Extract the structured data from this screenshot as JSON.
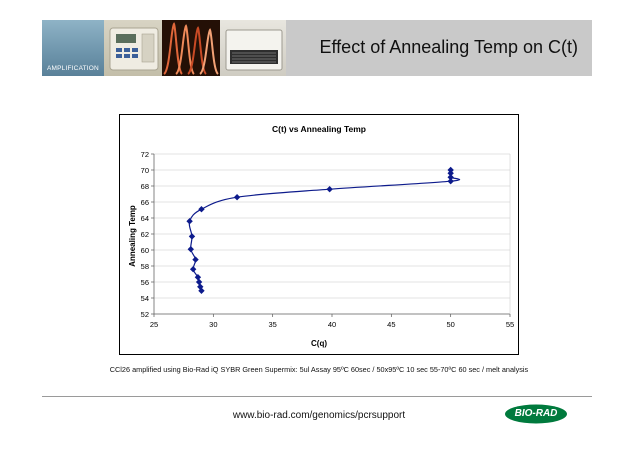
{
  "header": {
    "section_label": "AMPLIFICATION",
    "title": "Effect of Annealing Temp on C(t)"
  },
  "chart_data": {
    "type": "scatter",
    "title": "C(t) vs Annealing Temp",
    "xlabel": "C(q)",
    "ylabel": "Annealing Temp",
    "xlim": [
      25,
      55
    ],
    "ylim": [
      52,
      72
    ],
    "x_ticks": [
      "25",
      "30",
      "35",
      "40",
      "45",
      "50",
      "55"
    ],
    "y_ticks": [
      "52",
      "54",
      "56",
      "58",
      "60",
      "62",
      "64",
      "66",
      "68",
      "70",
      "72"
    ],
    "grid": true,
    "legend": "none",
    "series_color": "#0d1b8c",
    "points": [
      {
        "x": 29.0,
        "y": 54.9
      },
      {
        "x": 28.9,
        "y": 55.4
      },
      {
        "x": 28.8,
        "y": 56.0
      },
      {
        "x": 28.7,
        "y": 56.6
      },
      {
        "x": 28.3,
        "y": 57.6
      },
      {
        "x": 28.5,
        "y": 58.8
      },
      {
        "x": 28.1,
        "y": 60.1
      },
      {
        "x": 28.2,
        "y": 61.7
      },
      {
        "x": 28.0,
        "y": 63.6
      },
      {
        "x": 29.0,
        "y": 65.1
      },
      {
        "x": 32.0,
        "y": 66.6
      },
      {
        "x": 39.8,
        "y": 67.6
      },
      {
        "x": 50.0,
        "y": 68.6
      },
      {
        "x": 50.0,
        "y": 69.1
      },
      {
        "x": 50.0,
        "y": 69.6
      },
      {
        "x": 50.0,
        "y": 70.0
      }
    ]
  },
  "caption": "CCl26 amplified using Bio-Rad iQ SYBR Green Supermix:  5ul Assay  95ºC 60sec / 50x95ºC 10 sec 55-70ºC 60 sec / melt analysis",
  "footer": {
    "url": "www.bio-rad.com/genomics/pcrsupport",
    "logo_text": "BIO-RAD",
    "logo_color": "#007a3d"
  }
}
